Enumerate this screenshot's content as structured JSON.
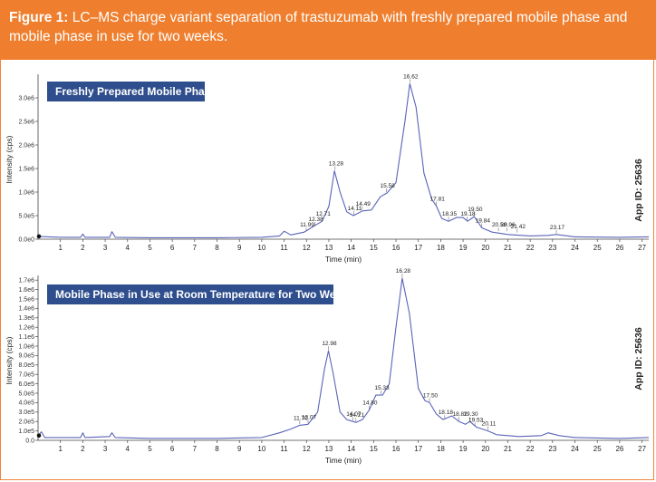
{
  "caption": {
    "figure_label": "Figure 1:",
    "text": " LC–MS charge variant separation of trastuzumab with freshly prepared mobile phase and mobile phase in use for two weeks."
  },
  "colors": {
    "caption_bg": "#ef7f2e",
    "panel_label_bg": "#2f4e8d",
    "trace": "#5a63b8"
  },
  "chart_data": [
    {
      "type": "line",
      "title": "Freshly Prepared Mobile Phase",
      "xlabel": "Time (min)",
      "ylabel": "Intensity (cps)",
      "side_label": "App ID: 25636",
      "xlim": [
        0,
        27.3
      ],
      "ylim": [
        0,
        3.5
      ],
      "x_ticks": [
        1,
        2,
        3,
        4,
        5,
        6,
        7,
        8,
        9,
        10,
        11,
        12,
        13,
        14,
        15,
        16,
        17,
        18,
        19,
        20,
        21,
        22,
        23,
        24,
        25,
        26,
        27
      ],
      "y_ticks": [
        {
          "value": 0.0,
          "label": "0.0e0"
        },
        {
          "value": 0.5,
          "label": "5.0e5"
        },
        {
          "value": 1.0,
          "label": "1.0e6"
        },
        {
          "value": 1.5,
          "label": "1.5e6"
        },
        {
          "value": 2.0,
          "label": "2.0e6"
        },
        {
          "value": 2.5,
          "label": "2.5e6"
        },
        {
          "value": 3.0,
          "label": "3.0e6"
        }
      ],
      "series": [
        {
          "name": "Freshly Prepared Mobile Phase",
          "points": [
            [
              0,
              0.06
            ],
            [
              1,
              0.04
            ],
            [
              1.9,
              0.04
            ],
            [
              2,
              0.11
            ],
            [
              2.1,
              0.04
            ],
            [
              3.2,
              0.04
            ],
            [
              3.3,
              0.16
            ],
            [
              3.45,
              0.04
            ],
            [
              5,
              0.03
            ],
            [
              8,
              0.03
            ],
            [
              10,
              0.04
            ],
            [
              10.8,
              0.07
            ],
            [
              11,
              0.17
            ],
            [
              11.3,
              0.09
            ],
            [
              11.9,
              0.15
            ],
            [
              12.3,
              0.27
            ],
            [
              12.7,
              0.38
            ],
            [
              13.0,
              0.7
            ],
            [
              13.25,
              1.45
            ],
            [
              13.5,
              1.0
            ],
            [
              13.8,
              0.58
            ],
            [
              14.1,
              0.5
            ],
            [
              14.5,
              0.6
            ],
            [
              14.9,
              0.62
            ],
            [
              15.3,
              0.9
            ],
            [
              15.6,
              0.98
            ],
            [
              16.0,
              1.2
            ],
            [
              16.4,
              2.5
            ],
            [
              16.62,
              3.3
            ],
            [
              16.9,
              2.8
            ],
            [
              17.25,
              1.4
            ],
            [
              17.6,
              0.85
            ],
            [
              17.81,
              0.7
            ],
            [
              18.05,
              0.44
            ],
            [
              18.35,
              0.38
            ],
            [
              18.7,
              0.46
            ],
            [
              19.0,
              0.46
            ],
            [
              19.2,
              0.38
            ],
            [
              19.5,
              0.48
            ],
            [
              19.84,
              0.24
            ],
            [
              20.3,
              0.15
            ],
            [
              21.0,
              0.1
            ],
            [
              22.0,
              0.07
            ],
            [
              22.8,
              0.08
            ],
            [
              23.17,
              0.1
            ],
            [
              24,
              0.05
            ],
            [
              26,
              0.04
            ],
            [
              27.3,
              0.05
            ]
          ]
        }
      ],
      "peak_labels": [
        {
          "x": 11.99,
          "y": 0.15,
          "label": "11.99"
        },
        {
          "x": 12.38,
          "y": 0.27,
          "label": "12.38"
        },
        {
          "x": 12.71,
          "y": 0.38,
          "label": "12.71"
        },
        {
          "x": 13.28,
          "y": 1.45,
          "label": "13.28"
        },
        {
          "x": 14.11,
          "y": 0.5,
          "label": "14.11"
        },
        {
          "x": 14.49,
          "y": 0.6,
          "label": "14.49"
        },
        {
          "x": 15.58,
          "y": 0.98,
          "label": "15.58"
        },
        {
          "x": 16.62,
          "y": 3.3,
          "label": "16.62"
        },
        {
          "x": 17.81,
          "y": 0.7,
          "label": "17.81"
        },
        {
          "x": 18.35,
          "y": 0.38,
          "label": "18.35"
        },
        {
          "x": 19.18,
          "y": 0.38,
          "label": "19.18"
        },
        {
          "x": 19.5,
          "y": 0.48,
          "label": "19.50"
        },
        {
          "x": 19.84,
          "y": 0.24,
          "label": "19.84"
        },
        {
          "x": 20.58,
          "y": 0.15,
          "label": "20.58"
        },
        {
          "x": 20.96,
          "y": 0.15,
          "label": "20.96"
        },
        {
          "x": 21.42,
          "y": 0.12,
          "label": "21.42"
        },
        {
          "x": 23.17,
          "y": 0.1,
          "label": "23.17"
        }
      ]
    },
    {
      "type": "line",
      "title": "Mobile Phase in Use at Room Temperature for Two Weeks",
      "xlabel": "Time (min)",
      "ylabel": "Intensity (cps)",
      "side_label": "App ID: 25636",
      "xlim": [
        0,
        27.3
      ],
      "ylim": [
        0,
        1.75
      ],
      "x_ticks": [
        1,
        2,
        3,
        4,
        5,
        6,
        7,
        8,
        9,
        10,
        11,
        12,
        13,
        14,
        15,
        16,
        17,
        18,
        19,
        20,
        21,
        22,
        23,
        24,
        25,
        26,
        27
      ],
      "y_ticks": [
        {
          "value": 0.0,
          "label": "0.0"
        },
        {
          "value": 0.1,
          "label": "1.0e5"
        },
        {
          "value": 0.2,
          "label": "2.0e5"
        },
        {
          "value": 0.3,
          "label": "3.0e5"
        },
        {
          "value": 0.4,
          "label": "4.0e5"
        },
        {
          "value": 0.5,
          "label": "5.0e5"
        },
        {
          "value": 0.6,
          "label": "6.0e5"
        },
        {
          "value": 0.7,
          "label": "7.0e5"
        },
        {
          "value": 0.8,
          "label": "8.0e5"
        },
        {
          "value": 0.9,
          "label": "9.0e5"
        },
        {
          "value": 1.0,
          "label": "1.0e6"
        },
        {
          "value": 1.1,
          "label": "1.1e6"
        },
        {
          "value": 1.2,
          "label": "1.2e6"
        },
        {
          "value": 1.3,
          "label": "1.3e6"
        },
        {
          "value": 1.4,
          "label": "1.4e6"
        },
        {
          "value": 1.5,
          "label": "1.5e6"
        },
        {
          "value": 1.6,
          "label": "1.6e6"
        },
        {
          "value": 1.7,
          "label": "1.7e6"
        }
      ],
      "series": [
        {
          "name": "Mobile Phase in Use at Room Temperature for Two Weeks",
          "points": [
            [
              0,
              0.05
            ],
            [
              0.15,
              0.09
            ],
            [
              0.3,
              0.03
            ],
            [
              1,
              0.03
            ],
            [
              1.9,
              0.03
            ],
            [
              2,
              0.08
            ],
            [
              2.1,
              0.03
            ],
            [
              3.2,
              0.04
            ],
            [
              3.3,
              0.08
            ],
            [
              3.45,
              0.03
            ],
            [
              5,
              0.02
            ],
            [
              8,
              0.02
            ],
            [
              10,
              0.03
            ],
            [
              10.8,
              0.08
            ],
            [
              11.3,
              0.12
            ],
            [
              11.7,
              0.16
            ],
            [
              12.07,
              0.17
            ],
            [
              12.5,
              0.3
            ],
            [
              12.8,
              0.75
            ],
            [
              12.98,
              0.95
            ],
            [
              13.2,
              0.7
            ],
            [
              13.5,
              0.3
            ],
            [
              13.8,
              0.22
            ],
            [
              14.07,
              0.2
            ],
            [
              14.21,
              0.19
            ],
            [
              14.5,
              0.22
            ],
            [
              14.8,
              0.32
            ],
            [
              15.1,
              0.48
            ],
            [
              15.4,
              0.48
            ],
            [
              15.7,
              0.6
            ],
            [
              16.0,
              1.2
            ],
            [
              16.28,
              1.72
            ],
            [
              16.6,
              1.35
            ],
            [
              17.0,
              0.55
            ],
            [
              17.3,
              0.42
            ],
            [
              17.5,
              0.4
            ],
            [
              17.8,
              0.28
            ],
            [
              18.1,
              0.22
            ],
            [
              18.5,
              0.26
            ],
            [
              18.82,
              0.2
            ],
            [
              19.1,
              0.17
            ],
            [
              19.3,
              0.2
            ],
            [
              19.6,
              0.14
            ],
            [
              20.11,
              0.1
            ],
            [
              20.5,
              0.06
            ],
            [
              21.5,
              0.04
            ],
            [
              22.5,
              0.05
            ],
            [
              22.8,
              0.08
            ],
            [
              23.3,
              0.05
            ],
            [
              24,
              0.03
            ],
            [
              26,
              0.02
            ],
            [
              27.3,
              0.03
            ]
          ]
        }
      ],
      "peak_labels": [
        {
          "x": 11.7,
          "y": 0.16,
          "label": "11.70"
        },
        {
          "x": 12.07,
          "y": 0.17,
          "label": "12.07"
        },
        {
          "x": 12.98,
          "y": 0.95,
          "label": "12.98"
        },
        {
          "x": 14.07,
          "y": 0.2,
          "label": "14.07"
        },
        {
          "x": 14.21,
          "y": 0.19,
          "label": "14.21"
        },
        {
          "x": 14.8,
          "y": 0.32,
          "label": "14.80"
        },
        {
          "x": 15.33,
          "y": 0.48,
          "label": "15.33"
        },
        {
          "x": 16.28,
          "y": 1.72,
          "label": "16.28"
        },
        {
          "x": 17.5,
          "y": 0.4,
          "label": "17.50"
        },
        {
          "x": 18.18,
          "y": 0.22,
          "label": "18.18"
        },
        {
          "x": 18.82,
          "y": 0.2,
          "label": "18.82"
        },
        {
          "x": 19.3,
          "y": 0.2,
          "label": "19.30"
        },
        {
          "x": 19.53,
          "y": 0.14,
          "label": "19.53"
        },
        {
          "x": 20.11,
          "y": 0.1,
          "label": "20.11"
        }
      ]
    }
  ]
}
